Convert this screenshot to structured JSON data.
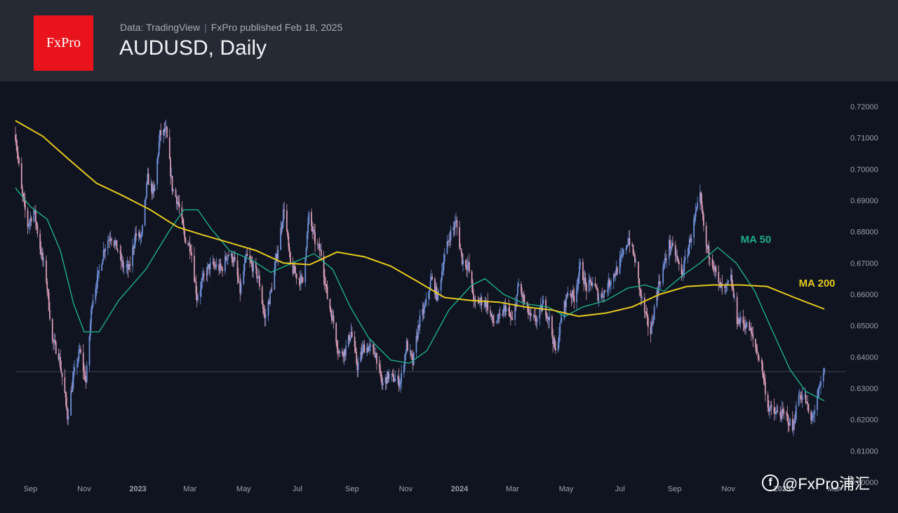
{
  "header": {
    "logo_text": "FxPro",
    "source": "Data: TradingView",
    "published": "FxPro published Feb 18, 2025",
    "title": "AUDUSD, Daily"
  },
  "watermark": {
    "icon": "facebook-icon",
    "text": "@FxPro浦汇"
  },
  "colors": {
    "background": "#0f1420",
    "header_bg": "#262a35",
    "logo_bg": "#e8131b",
    "candle_up": "#6e8fd8",
    "candle_down": "#d69ab3",
    "ma50": "#1fae8a",
    "ma200": "#e6c81e",
    "axis_text": "#9aa0ab"
  },
  "chart_data": {
    "type": "candlestick",
    "symbol": "AUDUSD",
    "timeframe": "Daily",
    "x_range": [
      "2022-08-15",
      "2025-02-18"
    ],
    "x_ticks": [
      {
        "date": "2022-09-01",
        "label": "Sep"
      },
      {
        "date": "2022-11-01",
        "label": "Nov"
      },
      {
        "date": "2023-01-01",
        "label": "2023"
      },
      {
        "date": "2023-03-01",
        "label": "Mar"
      },
      {
        "date": "2023-05-01",
        "label": "May"
      },
      {
        "date": "2023-07-01",
        "label": "Jul"
      },
      {
        "date": "2023-09-01",
        "label": "Sep"
      },
      {
        "date": "2023-11-01",
        "label": "Nov"
      },
      {
        "date": "2024-01-01",
        "label": "2024"
      },
      {
        "date": "2024-03-01",
        "label": "Mar"
      },
      {
        "date": "2024-05-01",
        "label": "May"
      },
      {
        "date": "2024-07-01",
        "label": "Jul"
      },
      {
        "date": "2024-09-01",
        "label": "Sep"
      },
      {
        "date": "2024-11-01",
        "label": "Nov"
      },
      {
        "date": "2025-01-01",
        "label": "2025"
      },
      {
        "date": "2025-03-01",
        "label": "Mar"
      }
    ],
    "y_range": [
      0.6,
      0.72
    ],
    "y_ticks": [
      "0.72000",
      "0.71000",
      "0.70000",
      "0.69000",
      "0.68000",
      "0.67000",
      "0.66000",
      "0.65000",
      "0.64000",
      "0.63000",
      "0.62000",
      "0.61000",
      "0.60000"
    ],
    "horizontal_line": 0.6353,
    "price_path": [
      [
        "2022-08-15",
        0.711
      ],
      [
        "2022-08-22",
        0.693
      ],
      [
        "2022-08-29",
        0.682
      ],
      [
        "2022-09-05",
        0.687
      ],
      [
        "2022-09-12",
        0.675
      ],
      [
        "2022-09-19",
        0.665
      ],
      [
        "2022-09-26",
        0.645
      ],
      [
        "2022-10-03",
        0.641
      ],
      [
        "2022-10-10",
        0.628
      ],
      [
        "2022-10-13",
        0.621
      ],
      [
        "2022-10-20",
        0.634
      ],
      [
        "2022-10-27",
        0.642
      ],
      [
        "2022-11-03",
        0.632
      ],
      [
        "2022-11-10",
        0.658
      ],
      [
        "2022-11-17",
        0.666
      ],
      [
        "2022-11-24",
        0.675
      ],
      [
        "2022-12-01",
        0.679
      ],
      [
        "2022-12-08",
        0.675
      ],
      [
        "2022-12-15",
        0.669
      ],
      [
        "2022-12-22",
        0.668
      ],
      [
        "2022-12-29",
        0.679
      ],
      [
        "2023-01-05",
        0.678
      ],
      [
        "2023-01-12",
        0.697
      ],
      [
        "2023-01-19",
        0.692
      ],
      [
        "2023-01-26",
        0.711
      ],
      [
        "2023-02-02",
        0.712
      ],
      [
        "2023-02-09",
        0.694
      ],
      [
        "2023-02-16",
        0.689
      ],
      [
        "2023-02-23",
        0.678
      ],
      [
        "2023-03-02",
        0.675
      ],
      [
        "2023-03-09",
        0.659
      ],
      [
        "2023-03-16",
        0.665
      ],
      [
        "2023-03-23",
        0.669
      ],
      [
        "2023-03-30",
        0.669
      ],
      [
        "2023-04-06",
        0.668
      ],
      [
        "2023-04-13",
        0.673
      ],
      [
        "2023-04-20",
        0.671
      ],
      [
        "2023-04-27",
        0.661
      ],
      [
        "2023-05-04",
        0.672
      ],
      [
        "2023-05-11",
        0.669
      ],
      [
        "2023-05-18",
        0.665
      ],
      [
        "2023-05-25",
        0.652
      ],
      [
        "2023-06-01",
        0.661
      ],
      [
        "2023-06-08",
        0.673
      ],
      [
        "2023-06-16",
        0.688
      ],
      [
        "2023-06-23",
        0.669
      ],
      [
        "2023-06-30",
        0.666
      ],
      [
        "2023-07-07",
        0.664
      ],
      [
        "2023-07-14",
        0.685
      ],
      [
        "2023-07-21",
        0.677
      ],
      [
        "2023-07-28",
        0.673
      ],
      [
        "2023-08-04",
        0.659
      ],
      [
        "2023-08-11",
        0.651
      ],
      [
        "2023-08-17",
        0.641
      ],
      [
        "2023-08-24",
        0.642
      ],
      [
        "2023-08-31",
        0.648
      ],
      [
        "2023-09-07",
        0.637
      ],
      [
        "2023-09-14",
        0.643
      ],
      [
        "2023-09-21",
        0.643
      ],
      [
        "2023-09-28",
        0.641
      ],
      [
        "2023-10-05",
        0.631
      ],
      [
        "2023-10-12",
        0.634
      ],
      [
        "2023-10-19",
        0.633
      ],
      [
        "2023-10-26",
        0.632
      ],
      [
        "2023-11-02",
        0.644
      ],
      [
        "2023-11-09",
        0.638
      ],
      [
        "2023-11-16",
        0.651
      ],
      [
        "2023-11-23",
        0.656
      ],
      [
        "2023-11-30",
        0.665
      ],
      [
        "2023-12-07",
        0.659
      ],
      [
        "2023-12-14",
        0.671
      ],
      [
        "2023-12-21",
        0.679
      ],
      [
        "2023-12-28",
        0.683
      ],
      [
        "2024-01-04",
        0.671
      ],
      [
        "2024-01-11",
        0.669
      ],
      [
        "2024-01-18",
        0.657
      ],
      [
        "2024-01-25",
        0.658
      ],
      [
        "2024-02-01",
        0.657
      ],
      [
        "2024-02-08",
        0.651
      ],
      [
        "2024-02-15",
        0.652
      ],
      [
        "2024-02-22",
        0.656
      ],
      [
        "2024-03-01",
        0.651
      ],
      [
        "2024-03-08",
        0.663
      ],
      [
        "2024-03-15",
        0.657
      ],
      [
        "2024-03-22",
        0.652
      ],
      [
        "2024-03-29",
        0.652
      ],
      [
        "2024-04-05",
        0.657
      ],
      [
        "2024-04-12",
        0.652
      ],
      [
        "2024-04-19",
        0.641
      ],
      [
        "2024-04-26",
        0.653
      ],
      [
        "2024-05-03",
        0.661
      ],
      [
        "2024-05-10",
        0.659
      ],
      [
        "2024-05-17",
        0.669
      ],
      [
        "2024-05-24",
        0.662
      ],
      [
        "2024-05-31",
        0.664
      ],
      [
        "2024-06-07",
        0.659
      ],
      [
        "2024-06-14",
        0.661
      ],
      [
        "2024-06-21",
        0.665
      ],
      [
        "2024-06-28",
        0.668
      ],
      [
        "2024-07-05",
        0.673
      ],
      [
        "2024-07-11",
        0.678
      ],
      [
        "2024-07-18",
        0.671
      ],
      [
        "2024-07-25",
        0.659
      ],
      [
        "2024-08-01",
        0.651
      ],
      [
        "2024-08-05",
        0.648
      ],
      [
        "2024-08-12",
        0.661
      ],
      [
        "2024-08-19",
        0.668
      ],
      [
        "2024-08-26",
        0.676
      ],
      [
        "2024-09-02",
        0.673
      ],
      [
        "2024-09-09",
        0.666
      ],
      [
        "2024-09-16",
        0.674
      ],
      [
        "2024-09-23",
        0.683
      ],
      [
        "2024-09-30",
        0.691
      ],
      [
        "2024-10-07",
        0.675
      ],
      [
        "2024-10-14",
        0.671
      ],
      [
        "2024-10-21",
        0.663
      ],
      [
        "2024-10-28",
        0.661
      ],
      [
        "2024-11-04",
        0.665
      ],
      [
        "2024-11-11",
        0.652
      ],
      [
        "2024-11-18",
        0.651
      ],
      [
        "2024-11-25",
        0.649
      ],
      [
        "2024-12-02",
        0.643
      ],
      [
        "2024-12-09",
        0.637
      ],
      [
        "2024-12-16",
        0.624
      ],
      [
        "2024-12-23",
        0.622
      ],
      [
        "2024-12-30",
        0.622
      ],
      [
        "2025-01-06",
        0.621
      ],
      [
        "2025-01-13",
        0.617
      ],
      [
        "2025-01-20",
        0.628
      ],
      [
        "2025-01-27",
        0.627
      ],
      [
        "2025-02-03",
        0.619
      ],
      [
        "2025-02-10",
        0.627
      ],
      [
        "2025-02-18",
        0.6353
      ]
    ],
    "series": [
      {
        "name": "MA 50",
        "color": "#1fae8a",
        "values": [
          [
            "2022-08-15",
            0.694
          ],
          [
            "2022-09-01",
            0.688
          ],
          [
            "2022-09-20",
            0.684
          ],
          [
            "2022-10-05",
            0.674
          ],
          [
            "2022-10-20",
            0.657
          ],
          [
            "2022-11-01",
            0.648
          ],
          [
            "2022-11-18",
            0.648
          ],
          [
            "2022-12-10",
            0.658
          ],
          [
            "2023-01-10",
            0.668
          ],
          [
            "2023-02-05",
            0.68
          ],
          [
            "2023-02-22",
            0.687
          ],
          [
            "2023-03-10",
            0.687
          ],
          [
            "2023-03-25",
            0.681
          ],
          [
            "2023-04-15",
            0.674
          ],
          [
            "2023-05-10",
            0.671
          ],
          [
            "2023-06-01",
            0.667
          ],
          [
            "2023-06-25",
            0.67
          ],
          [
            "2023-07-20",
            0.673
          ],
          [
            "2023-08-10",
            0.668
          ],
          [
            "2023-08-30",
            0.656
          ],
          [
            "2023-09-20",
            0.646
          ],
          [
            "2023-10-15",
            0.639
          ],
          [
            "2023-11-05",
            0.638
          ],
          [
            "2023-11-25",
            0.642
          ],
          [
            "2023-12-20",
            0.655
          ],
          [
            "2024-01-15",
            0.663
          ],
          [
            "2024-01-30",
            0.665
          ],
          [
            "2024-02-20",
            0.66
          ],
          [
            "2024-03-15",
            0.657
          ],
          [
            "2024-04-10",
            0.656
          ],
          [
            "2024-04-30",
            0.653
          ],
          [
            "2024-05-20",
            0.656
          ],
          [
            "2024-06-15",
            0.658
          ],
          [
            "2024-07-10",
            0.662
          ],
          [
            "2024-07-30",
            0.663
          ],
          [
            "2024-08-20",
            0.661
          ],
          [
            "2024-09-10",
            0.666
          ],
          [
            "2024-09-30",
            0.67
          ],
          [
            "2024-10-20",
            0.675
          ],
          [
            "2024-11-10",
            0.67
          ],
          [
            "2024-12-01",
            0.661
          ],
          [
            "2024-12-20",
            0.649
          ],
          [
            "2025-01-10",
            0.636
          ],
          [
            "2025-01-28",
            0.629
          ],
          [
            "2025-02-18",
            0.626
          ]
        ]
      },
      {
        "name": "MA 200",
        "color": "#e6c81e",
        "values": [
          [
            "2022-08-15",
            0.7155
          ],
          [
            "2022-09-15",
            0.7105
          ],
          [
            "2022-10-15",
            0.703
          ],
          [
            "2022-11-15",
            0.6955
          ],
          [
            "2022-12-15",
            0.6915
          ],
          [
            "2023-01-15",
            0.687
          ],
          [
            "2023-02-15",
            0.6815
          ],
          [
            "2023-03-15",
            0.679
          ],
          [
            "2023-04-15",
            0.6765
          ],
          [
            "2023-05-15",
            0.674
          ],
          [
            "2023-06-15",
            0.67
          ],
          [
            "2023-07-15",
            0.6695
          ],
          [
            "2023-08-15",
            0.6735
          ],
          [
            "2023-09-15",
            0.672
          ],
          [
            "2023-10-15",
            0.669
          ],
          [
            "2023-11-15",
            0.664
          ],
          [
            "2023-12-15",
            0.659
          ],
          [
            "2024-01-15",
            0.658
          ],
          [
            "2024-02-15",
            0.6575
          ],
          [
            "2024-03-15",
            0.656
          ],
          [
            "2024-04-15",
            0.655
          ],
          [
            "2024-05-15",
            0.653
          ],
          [
            "2024-06-15",
            0.654
          ],
          [
            "2024-07-15",
            0.656
          ],
          [
            "2024-08-15",
            0.66
          ],
          [
            "2024-09-15",
            0.6625
          ],
          [
            "2024-10-15",
            0.663
          ],
          [
            "2024-11-15",
            0.663
          ],
          [
            "2024-12-15",
            0.6625
          ],
          [
            "2025-01-15",
            0.659
          ],
          [
            "2025-02-18",
            0.6553
          ]
        ]
      }
    ],
    "annotations": [
      {
        "text": "MA 50",
        "color": "#1fae8a",
        "at_date": "2024-11-15",
        "at_price": 0.6765
      },
      {
        "text": "MA 200",
        "color": "#e6c81e",
        "at_date": "2025-01-20",
        "at_price": 0.6625
      }
    ],
    "grid": false
  }
}
